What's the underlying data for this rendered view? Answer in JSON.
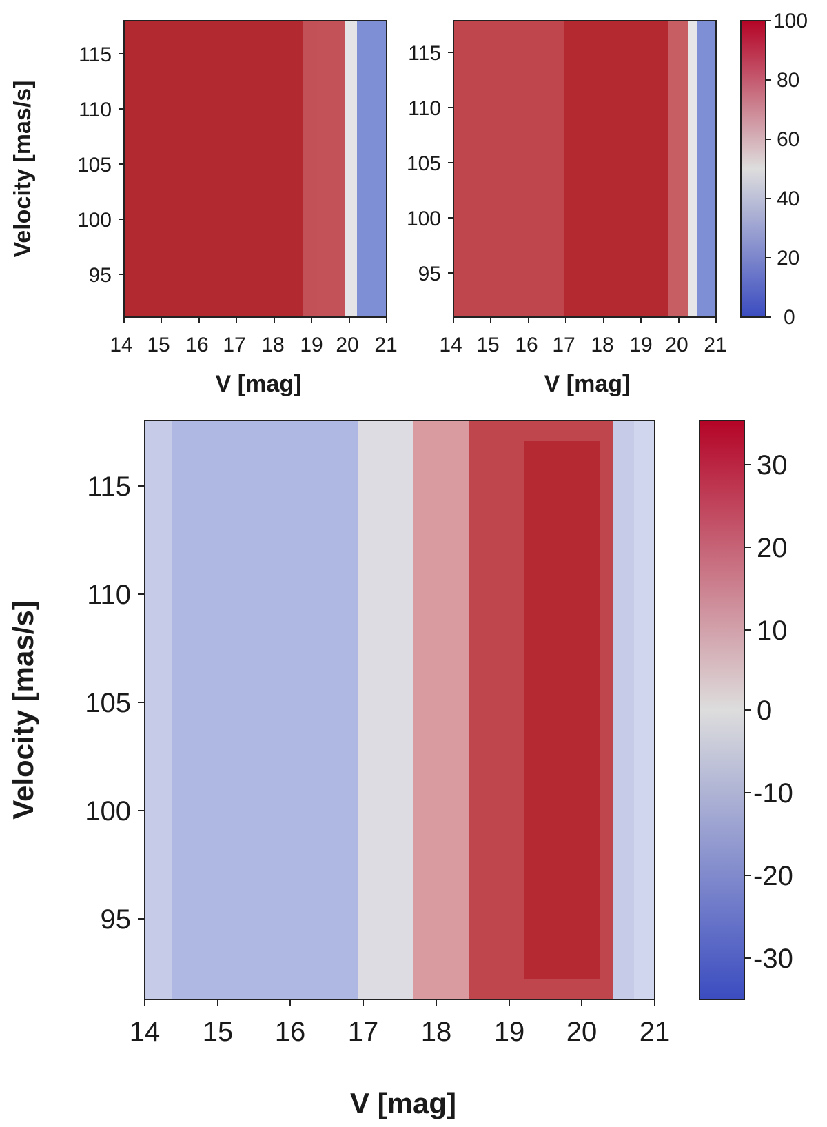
{
  "chart_data": [
    {
      "type": "heatmap",
      "xlabel": "V [mag]",
      "ylabel": "Velocity [mas/s]",
      "xlim": [
        14,
        21
      ],
      "ylim": [
        91,
        118
      ],
      "x_ticks": [
        "14",
        "15",
        "16",
        "17",
        "18",
        "19",
        "20",
        "21"
      ],
      "y_ticks": [
        "95",
        "100",
        "105",
        "110",
        "115"
      ],
      "colorbar": {
        "min": 0,
        "max": 100,
        "ticks": [
          "0",
          "20",
          "40",
          "60",
          "80",
          "100"
        ],
        "colormap": "blue-white-red"
      },
      "description_of_values": "value = 100 for V < 19.2, decreasing to 50 near V = 20 and to 0 at V = 21",
      "x": [
        14,
        18,
        19,
        19.5,
        20,
        20.3,
        21
      ],
      "values_by_x": [
        97,
        96,
        92,
        82,
        50,
        15,
        5
      ]
    },
    {
      "type": "heatmap",
      "xlabel": "V [mag]",
      "ylabel": "",
      "xlim": [
        14,
        21
      ],
      "ylim": [
        91,
        118
      ],
      "x_ticks": [
        "14",
        "15",
        "16",
        "17",
        "18",
        "19",
        "20",
        "21"
      ],
      "y_ticks": [
        "95",
        "100",
        "105",
        "110",
        "115"
      ],
      "x": [
        14,
        17,
        18,
        19,
        20,
        20.5,
        21
      ],
      "values_by_x": [
        88,
        92,
        97,
        96,
        88,
        45,
        5
      ]
    },
    {
      "type": "heatmap",
      "xlabel": "V [mag]",
      "ylabel": "Velocity [mas/s]",
      "xlim": [
        14,
        21
      ],
      "ylim": [
        91,
        118
      ],
      "x_ticks": [
        "14",
        "15",
        "16",
        "17",
        "18",
        "19",
        "20",
        "21"
      ],
      "y_ticks": [
        "95",
        "100",
        "105",
        "110",
        "115"
      ],
      "colorbar": {
        "min": -35,
        "max": 35,
        "ticks": [
          "30",
          "20",
          "10",
          "0",
          "-10",
          "-20",
          "-30"
        ],
        "colormap": "blue-white-red"
      },
      "x": [
        14,
        15,
        16,
        17,
        17.5,
        18,
        19,
        19.8,
        20.5,
        21
      ],
      "values_by_x": [
        -6,
        -12,
        -13,
        -8,
        0,
        12,
        24,
        30,
        16,
        -5
      ]
    }
  ],
  "colors": {
    "low": "#3b4cc0",
    "mid": "#dddddd",
    "high": "#b40426"
  }
}
